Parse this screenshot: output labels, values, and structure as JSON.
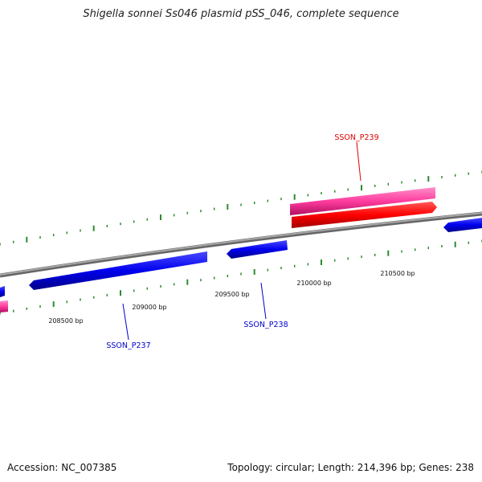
{
  "title": "Shigella sonnei Ss046 plasmid pSS_046, complete sequence",
  "footer": {
    "accession": "Accession: NC_007385",
    "topology": "Topology: circular; Length: 214,396 bp; Genes: 238"
  },
  "colors": {
    "backbone": "#808080",
    "tick": "#2e8b2e",
    "forward_cds": "#ff0000",
    "forward_gene": "#ff3c9e",
    "reverse_cds": "#0000ee",
    "label_forward": "#dd0000",
    "label_reverse": "#0000cc",
    "ruler_label": "#111111"
  },
  "genes": [
    {
      "name": "SSON_P237",
      "strand": "reverse"
    },
    {
      "name": "SSON_P238",
      "strand": "reverse"
    },
    {
      "name": "SSON_P239",
      "strand": "forward"
    }
  ],
  "ruler": {
    "labels": [
      "208500 bp",
      "209000 bp",
      "209500 bp",
      "210000 bp",
      "210500 bp"
    ]
  }
}
